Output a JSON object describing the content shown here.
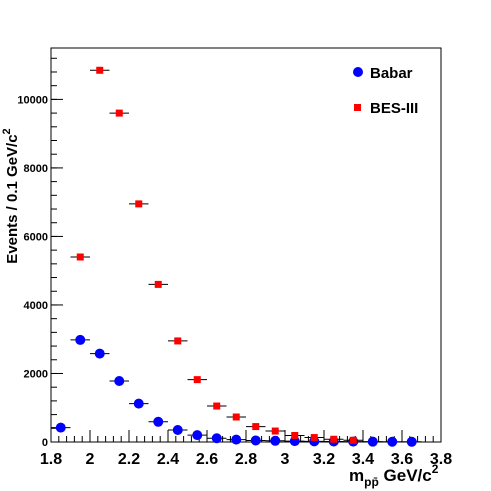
{
  "chart_data": {
    "type": "scatter",
    "x_ticks": [
      "1.8",
      "2",
      "2.2",
      "2.4",
      "2.6",
      "2.8",
      "3",
      "3.2",
      "3.4",
      "3.6",
      "3.8"
    ],
    "y_ticks": [
      "0",
      "2000",
      "4000",
      "6000",
      "8000",
      "10000"
    ],
    "xlim": [
      1.8,
      3.8
    ],
    "ylim": [
      0,
      11500
    ],
    "bin_width": 0.1,
    "grid": false,
    "legend_position": "top-right",
    "x_title": "m",
    "x_title_sub": "pp̄",
    "x_title_unit": " GeV/c",
    "x_title_sup": "2",
    "y_title": "Events / 0.1 GeV/c",
    "y_title_sup": "2",
    "series": [
      {
        "name": "Babar",
        "marker": "circle",
        "color": "#0000ff",
        "x": [
          1.85,
          1.95,
          2.05,
          2.15,
          2.25,
          2.35,
          2.45,
          2.55,
          2.65,
          2.75,
          2.85,
          2.95,
          3.05,
          3.15,
          3.25,
          3.35,
          3.45,
          3.55,
          3.65
        ],
        "y": [
          420,
          2980,
          2580,
          1780,
          1120,
          590,
          350,
          200,
          110,
          70,
          45,
          35,
          25,
          20,
          15,
          12,
          10,
          8,
          6
        ]
      },
      {
        "name": "BES-III",
        "marker": "square",
        "color": "#ff0000",
        "x": [
          1.95,
          2.05,
          2.15,
          2.25,
          2.35,
          2.45,
          2.55,
          2.65,
          2.75,
          2.85,
          2.95,
          3.05,
          3.15,
          3.25,
          3.35
        ],
        "y": [
          5400,
          10850,
          9600,
          6950,
          4600,
          2950,
          1820,
          1050,
          730,
          450,
          320,
          190,
          130,
          80,
          50
        ]
      }
    ]
  }
}
